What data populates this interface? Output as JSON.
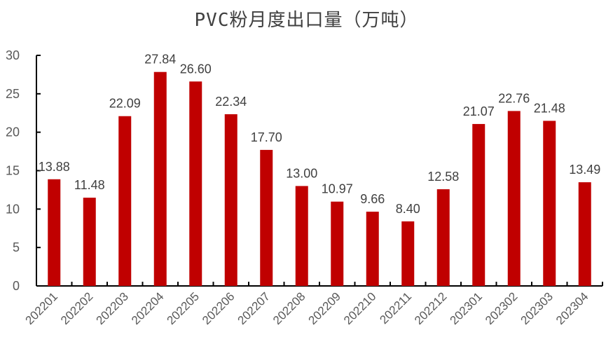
{
  "chart_data": {
    "type": "bar",
    "title": "PVC粉月度出口量（万吨）",
    "xlabel": "",
    "ylabel": "",
    "ylim": [
      0,
      30
    ],
    "yticks": [
      0,
      5,
      10,
      15,
      20,
      25,
      30
    ],
    "grid": false,
    "legend": null,
    "categories": [
      "202201",
      "202202",
      "202203",
      "202204",
      "202205",
      "202206",
      "202207",
      "202208",
      "202209",
      "202210",
      "202211",
      "202212",
      "202301",
      "202302",
      "202303",
      "202304"
    ],
    "values": [
      13.88,
      11.48,
      22.09,
      27.84,
      26.6,
      22.34,
      17.7,
      13.0,
      10.97,
      9.66,
      8.4,
      12.58,
      21.07,
      22.76,
      21.48,
      13.49
    ],
    "value_labels": [
      "13.88",
      "11.48",
      "22.09",
      "27.84",
      "26.60",
      "22.34",
      "17.70",
      "13.00",
      "10.97",
      "9.66",
      "8.40",
      "12.58",
      "21.07",
      "22.76",
      "21.48",
      "13.49"
    ],
    "bar_color": "#C00000"
  }
}
